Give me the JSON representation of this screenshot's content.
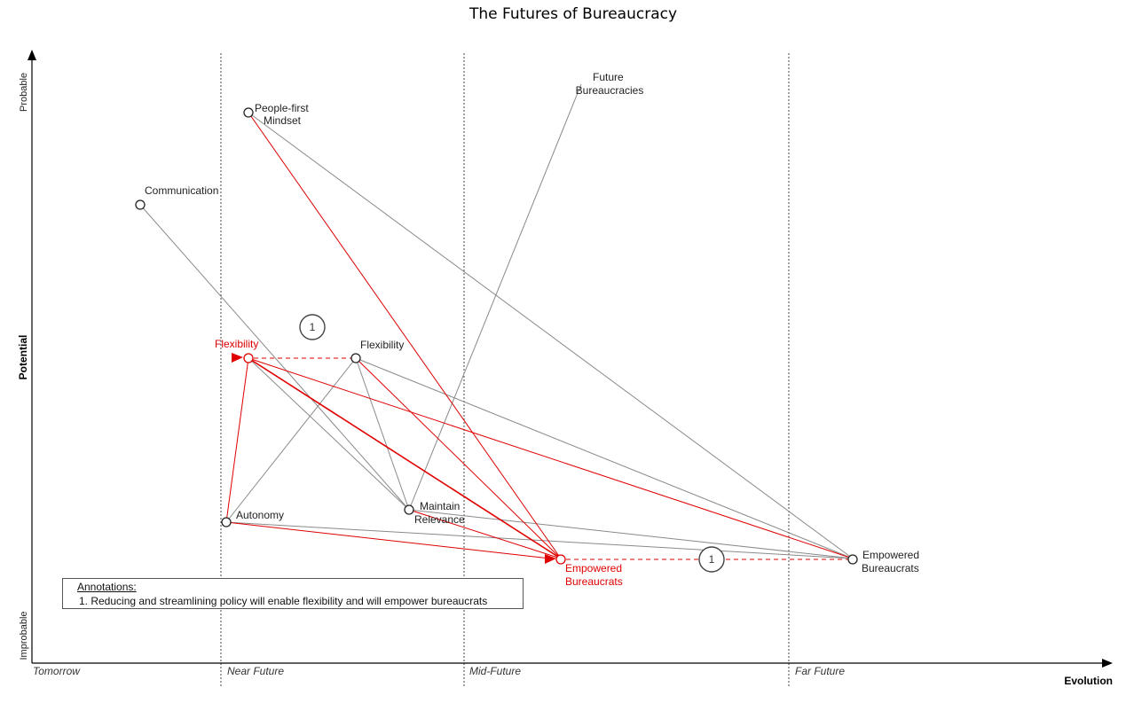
{
  "title": "The Futures of Bureaucracy",
  "axes": {
    "y_label": "Potential",
    "y_top": "Probable",
    "y_bottom": "Improbable",
    "x_label": "Evolution"
  },
  "eras": [
    "Tomorrow",
    "Near Future",
    "Mid-Future",
    "Far Future"
  ],
  "nodes": {
    "people_first": "People-first Mindset",
    "communication": "Communication",
    "future_bureaucracies": "Future Bureaucracies",
    "flexibility_red": "Flexibility",
    "flexibility": "Flexibility",
    "autonomy": "Autonomy",
    "maintain_relevance": "Maintain Relevance",
    "empowered_red": "Empowered Bureaucrats",
    "empowered": "Empowered Bureaucrats"
  },
  "badges": [
    "1",
    "1"
  ],
  "annotations": {
    "heading": "Annotations:",
    "items": [
      "1. Reducing and streamlining policy will enable flexibility and will empower bureaucrats"
    ]
  },
  "colors": {
    "red": "#e00000",
    "gray": "#8a8a8a",
    "axis": "#000000"
  }
}
